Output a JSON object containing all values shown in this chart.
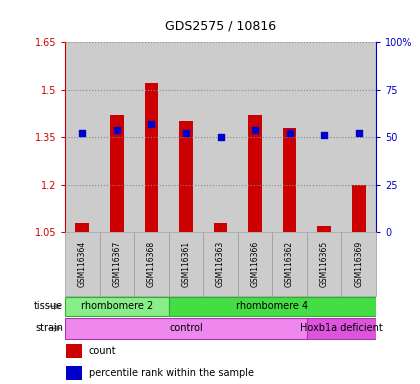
{
  "title": "GDS2575 / 10816",
  "samples": [
    "GSM116364",
    "GSM116367",
    "GSM116368",
    "GSM116361",
    "GSM116363",
    "GSM116366",
    "GSM116362",
    "GSM116365",
    "GSM116369"
  ],
  "count_values": [
    1.08,
    1.42,
    1.52,
    1.4,
    1.08,
    1.42,
    1.38,
    1.07,
    1.2
  ],
  "percentile_values": [
    52,
    54,
    57,
    52,
    50,
    54,
    52,
    51,
    52
  ],
  "ylim_left": [
    1.05,
    1.65
  ],
  "ylim_right": [
    0,
    100
  ],
  "yticks_left": [
    1.05,
    1.2,
    1.35,
    1.5,
    1.65
  ],
  "ytick_labels_left": [
    "1.05",
    "1.2",
    "1.35",
    "1.5",
    "1.65"
  ],
  "yticks_right": [
    0,
    25,
    50,
    75,
    100
  ],
  "ytick_labels_right": [
    "0",
    "25",
    "50",
    "75",
    "100%"
  ],
  "count_color": "#cc0000",
  "percentile_color": "#0000cc",
  "bar_width": 0.4,
  "tissue_groups": [
    {
      "label": "rhombomere 2",
      "start": 0,
      "end": 3,
      "color": "#88ee88"
    },
    {
      "label": "rhombomere 4",
      "start": 3,
      "end": 9,
      "color": "#44dd44"
    }
  ],
  "strain_groups": [
    {
      "label": "control",
      "start": 0,
      "end": 7,
      "color": "#ee88ee"
    },
    {
      "label": "Hoxb1a deficient",
      "start": 7,
      "end": 9,
      "color": "#dd55dd"
    }
  ],
  "tissue_label": "tissue",
  "strain_label": "strain",
  "legend_count": "count",
  "legend_pct": "percentile rank within the sample",
  "bg_color": "#ffffff",
  "col_bg": "#cccccc",
  "grid_color": "#888888"
}
